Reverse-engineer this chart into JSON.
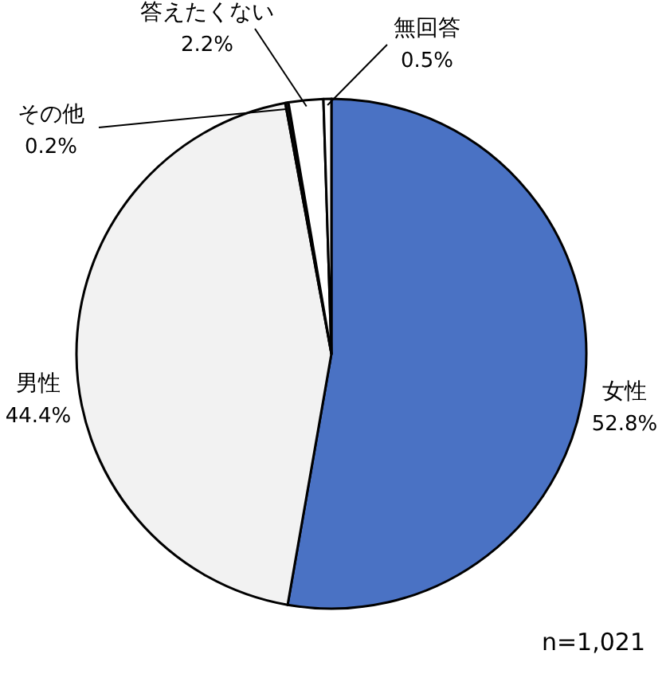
{
  "chart_data": {
    "type": "pie",
    "categories": [
      "女性",
      "男性",
      "その他",
      "答えたくない",
      "無回答"
    ],
    "values": [
      52.8,
      44.4,
      0.2,
      2.2,
      0.5
    ],
    "value_labels": [
      "52.8%",
      "44.4%",
      "0.2%",
      "2.2%",
      "0.5%"
    ],
    "colors": [
      "#4a72c4",
      "#f2f2f2",
      "#1a1a1a",
      "#ffffff",
      "#ffffff"
    ],
    "annotations": [
      "n=1,021"
    ]
  }
}
